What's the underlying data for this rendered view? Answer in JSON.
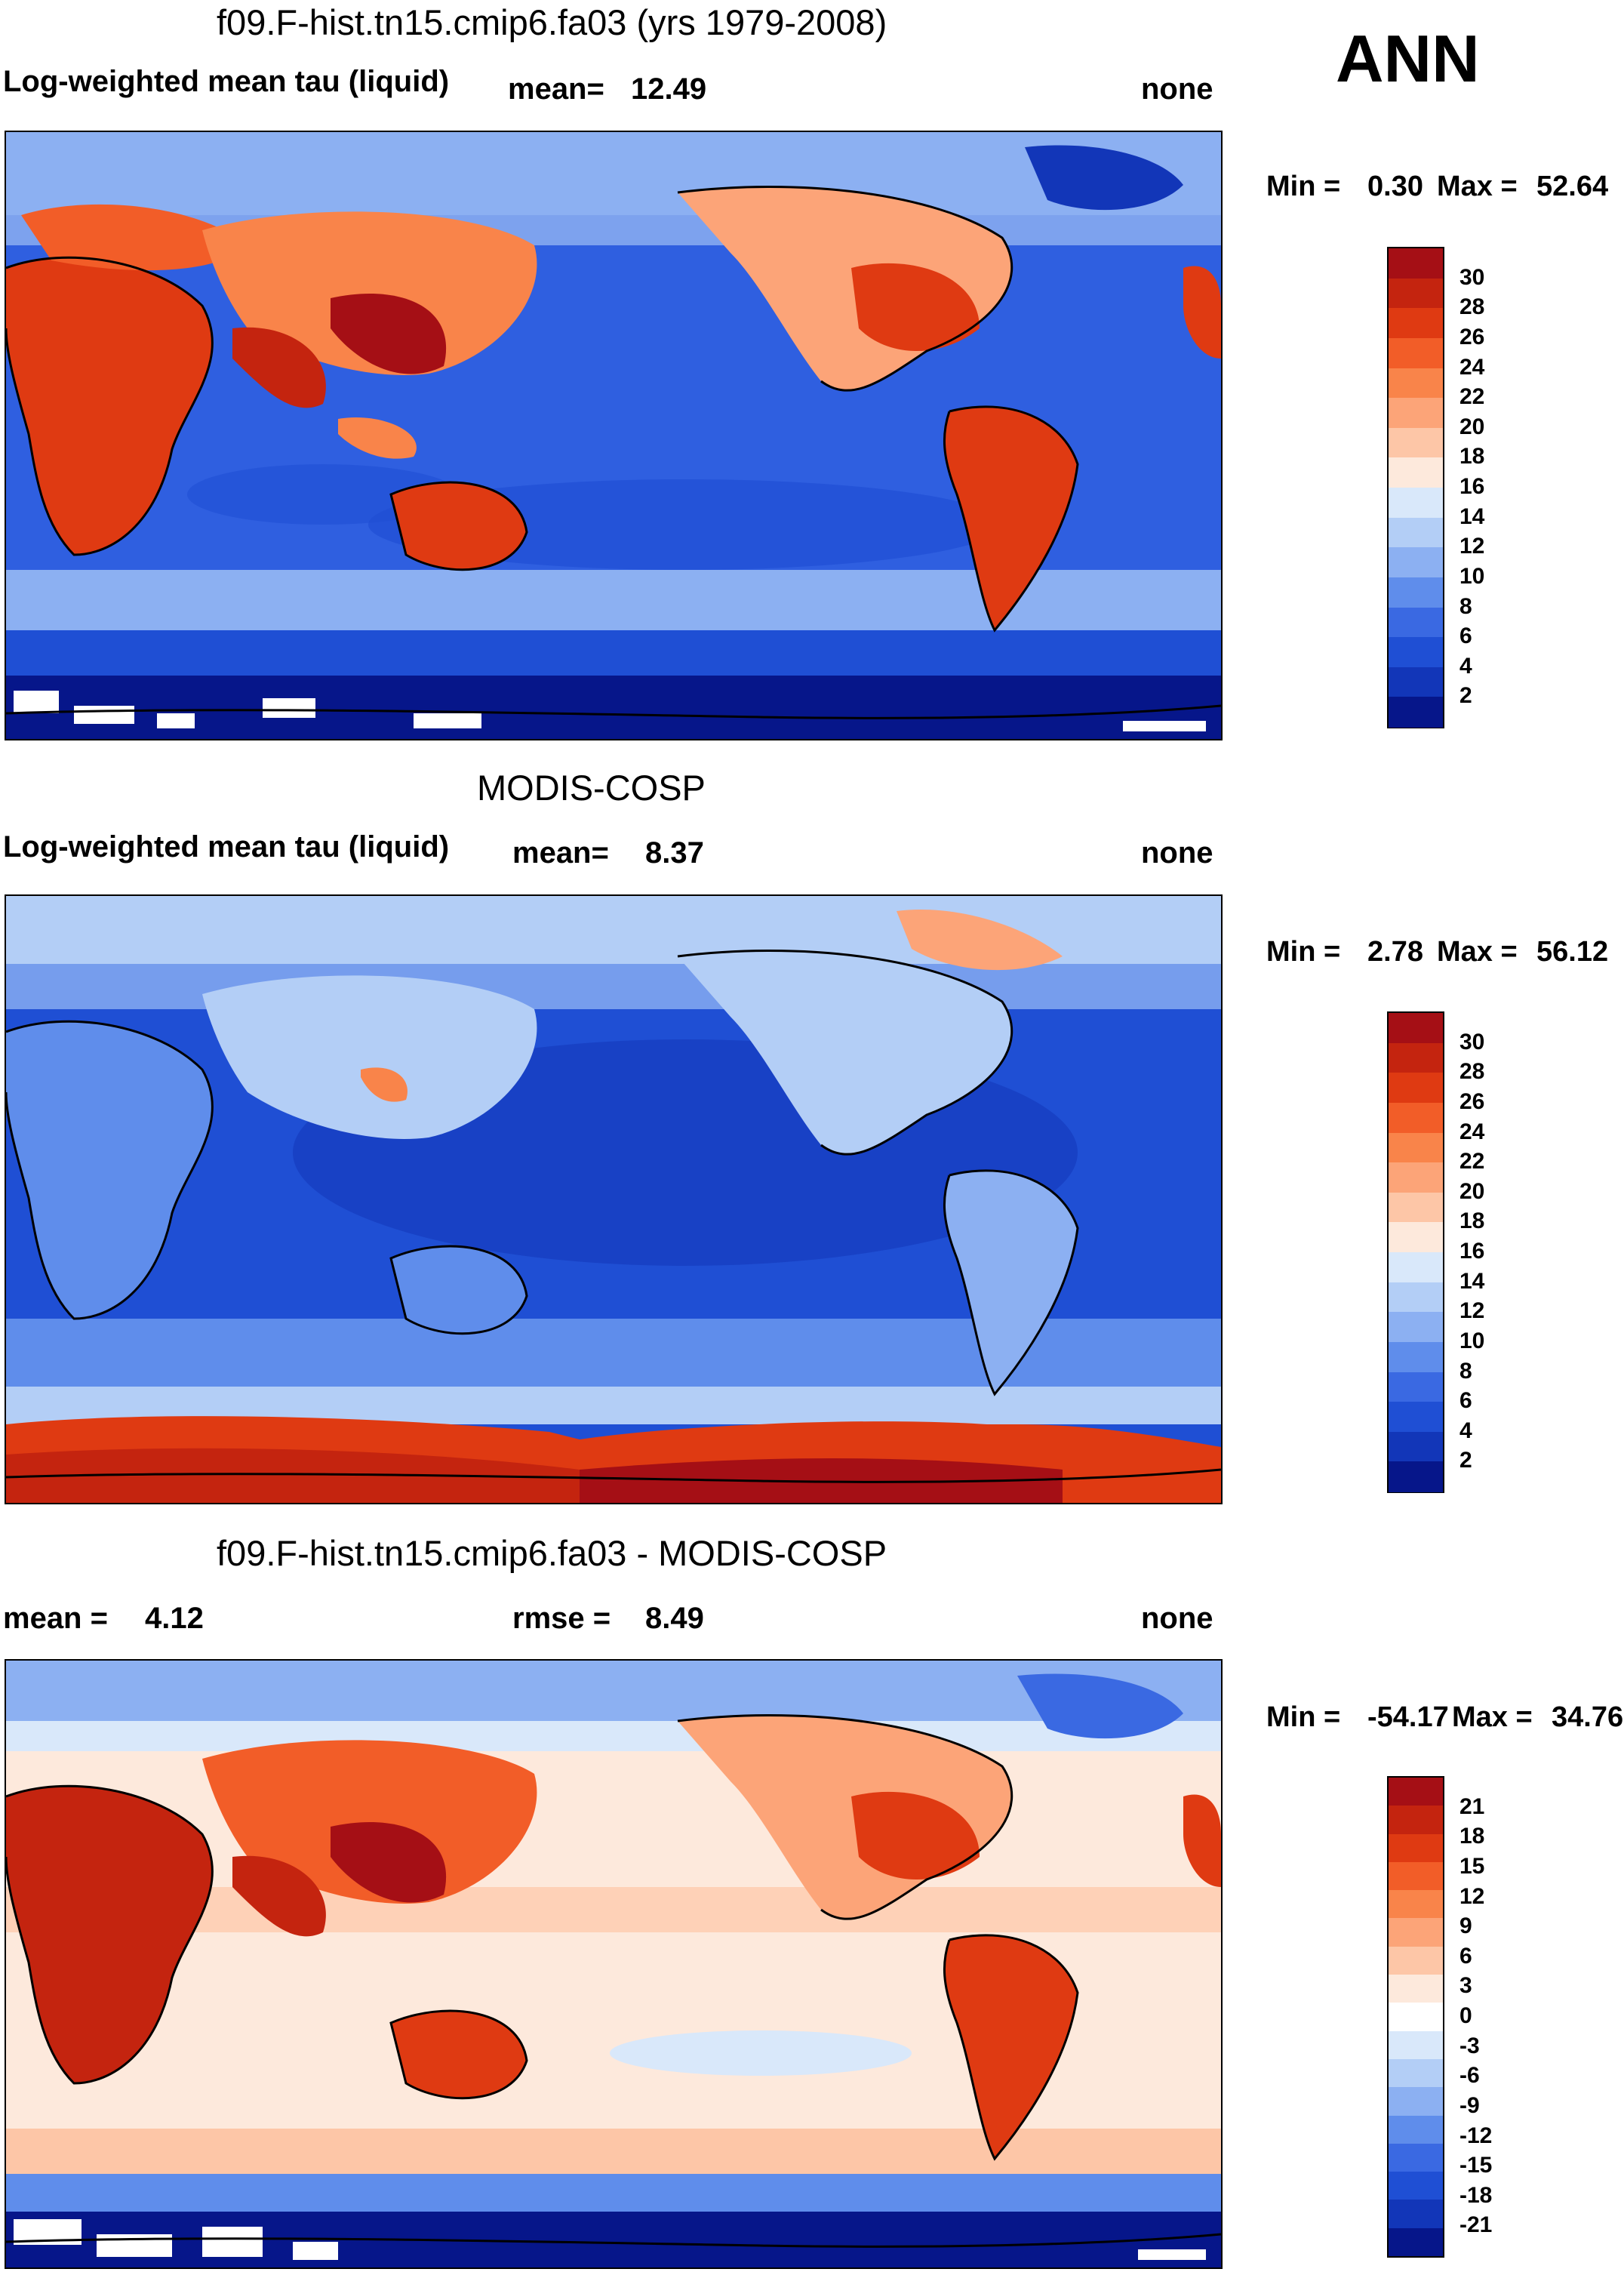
{
  "season": "ANN",
  "panels": [
    {
      "title": "f09.F-hist.tn15.cmip6.fa03 (yrs 1979-2008)",
      "left_label": "Log-weighted mean tau (liquid)",
      "stat_label": "mean=",
      "stat_value": "12.49",
      "units": "none",
      "min_label": "Min =",
      "min_value": "0.30",
      "max_label": "Max =",
      "max_value": "52.64",
      "levels": [
        "30",
        "28",
        "26",
        "24",
        "22",
        "20",
        "18",
        "16",
        "14",
        "12",
        "10",
        "8",
        "6",
        "4",
        "2"
      ],
      "colors": [
        "#a50f15",
        "#c4240f",
        "#df3a12",
        "#f25d28",
        "#f9844a",
        "#fca478",
        "#fdc6a7",
        "#fde9dc",
        "#d9e8fa",
        "#b3cef6",
        "#8cb0f2",
        "#5f8deb",
        "#3a69e2",
        "#1f4fd4",
        "#1236b8",
        "#06168a"
      ]
    },
    {
      "title": "MODIS-COSP",
      "left_label": "Log-weighted mean tau (liquid)",
      "stat_label": "mean=",
      "stat_value": "8.37",
      "units": "none",
      "min_label": "Min =",
      "min_value": "2.78",
      "max_label": "Max =",
      "max_value": "56.12",
      "levels": [
        "30",
        "28",
        "26",
        "24",
        "22",
        "20",
        "18",
        "16",
        "14",
        "12",
        "10",
        "8",
        "6",
        "4",
        "2"
      ],
      "colors": [
        "#a50f15",
        "#c4240f",
        "#df3a12",
        "#f25d28",
        "#f9844a",
        "#fca478",
        "#fdc6a7",
        "#fde9dc",
        "#d9e8fa",
        "#b3cef6",
        "#8cb0f2",
        "#5f8deb",
        "#3a69e2",
        "#1f4fd4",
        "#1236b8",
        "#06168a"
      ]
    },
    {
      "title": "f09.F-hist.tn15.cmip6.fa03 - MODIS-COSP",
      "left_label": "mean =",
      "left_value": "4.12",
      "stat_label": "rmse =",
      "stat_value": "8.49",
      "units": "none",
      "min_label": "Min =",
      "min_value": "-54.17",
      "max_label": "Max =",
      "max_value": "34.76",
      "levels": [
        "21",
        "18",
        "15",
        "12",
        "9",
        "6",
        "3",
        "0",
        "-3",
        "-6",
        "-9",
        "-12",
        "-15",
        "-18",
        "-21"
      ],
      "colors": [
        "#a50f15",
        "#c4240f",
        "#df3a12",
        "#f25d28",
        "#f9844a",
        "#fca478",
        "#fdc6a7",
        "#fde9dc",
        "#ffffff",
        "#d9e8fa",
        "#b3cef6",
        "#8cb0f2",
        "#5f8deb",
        "#3a69e2",
        "#1f4fd4",
        "#1236b8",
        "#06168a"
      ]
    }
  ]
}
